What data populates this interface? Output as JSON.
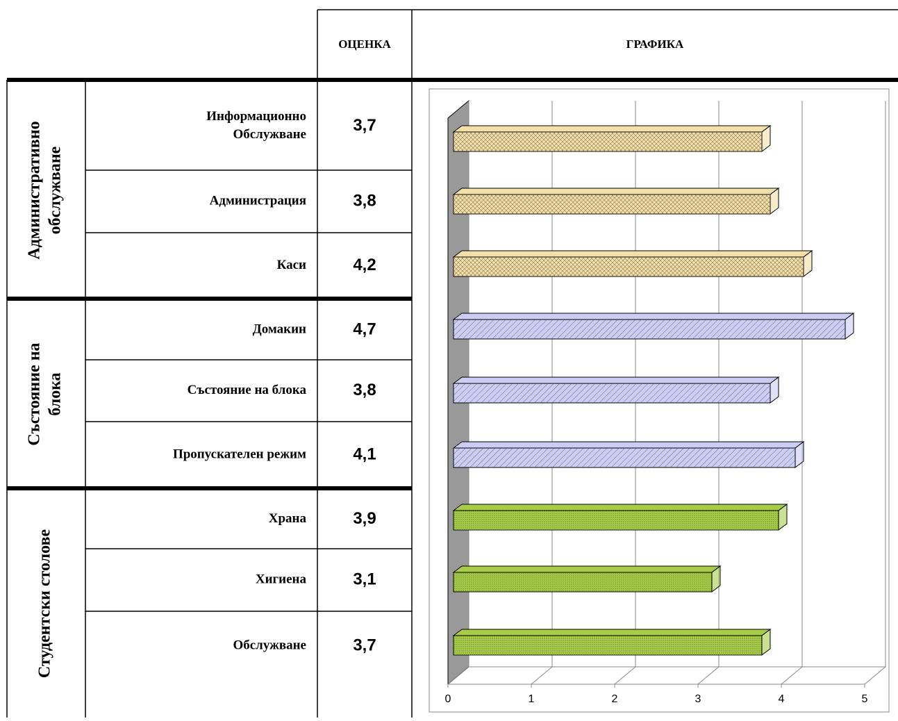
{
  "table": {
    "headers": [
      "ОЦЕНКА",
      "ГРАФИКА"
    ],
    "groups": [
      {
        "name": [
          "Административно",
          "обслужване"
        ],
        "rows": [
          [
            "Информационно",
            "Обслужване"
          ],
          [
            "Администрация"
          ],
          [
            "Каси"
          ]
        ]
      },
      {
        "name": [
          "Състояние на",
          "блока"
        ],
        "rows": [
          [
            "Домакин"
          ],
          [
            "Състояние на блока"
          ],
          [
            "Пропускателен режим"
          ]
        ]
      },
      {
        "name": [
          "Студентски столове"
        ],
        "rows": [
          [
            "Храна"
          ],
          [
            "Хигиена"
          ],
          [
            "Обслужване"
          ]
        ]
      }
    ]
  },
  "chart_data": {
    "type": "bar",
    "orientation": "horizontal",
    "values": [
      3.7,
      3.8,
      4.2,
      4.7,
      3.8,
      4.1,
      3.9,
      3.1,
      3.7
    ],
    "value_labels": [
      "3,7",
      "3,8",
      "4,2",
      "4,7",
      "3,8",
      "4,1",
      "3,9",
      "3,1",
      "3,7"
    ],
    "colors": [
      "#f3dfa8",
      "#f3dfa8",
      "#f3dfa8",
      "#ccccf5",
      "#ccccf5",
      "#ccccf5",
      "#a6cc4a",
      "#a6cc4a",
      "#a6cc4a"
    ],
    "xlim": [
      0,
      5
    ],
    "xticks": [
      0,
      1,
      2,
      3,
      4,
      5
    ],
    "grid": true
  }
}
